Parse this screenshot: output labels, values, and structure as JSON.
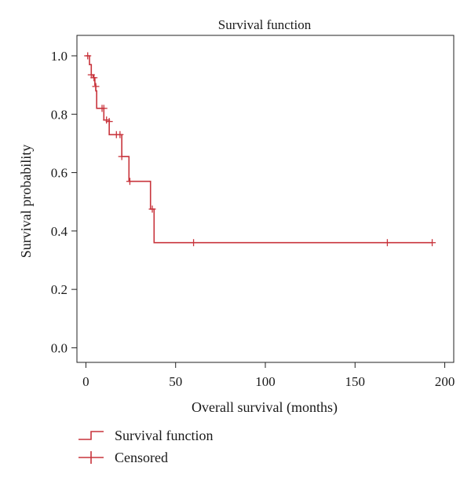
{
  "chart_data": {
    "type": "line",
    "title": "Survival function",
    "xlabel": "Overall survival (months)",
    "ylabel": "Survival probability",
    "xlim": [
      -5,
      205
    ],
    "ylim": [
      -0.05,
      1.07
    ],
    "xticks": [
      0,
      50,
      100,
      150,
      200
    ],
    "xtick_labels": [
      "0",
      "50",
      "100",
      "150",
      "200"
    ],
    "yticks": [
      0.0,
      0.2,
      0.4,
      0.6,
      0.8,
      1.0
    ],
    "ytick_labels": [
      "0.0",
      "0.2",
      "0.4",
      "0.6",
      "0.8",
      "1.0"
    ],
    "series": [
      {
        "name": "Survival function",
        "step": true,
        "color": "#c8343c",
        "x": [
          0,
          2,
          3,
          4,
          5,
          5.5,
          6,
          9,
          10,
          10.5,
          13,
          19,
          20,
          24,
          36,
          38,
          193
        ],
        "y": [
          1.0,
          0.97,
          0.935,
          0.925,
          0.9,
          0.88,
          0.82,
          0.82,
          0.78,
          0.78,
          0.73,
          0.73,
          0.655,
          0.57,
          0.475,
          0.36,
          0.36
        ]
      },
      {
        "name": "Censored",
        "color": "#c8343c",
        "x": [
          1,
          3,
          4.5,
          5.5,
          9,
          10,
          11.5,
          13,
          17,
          19,
          20,
          24.5,
          37,
          60,
          168,
          193
        ],
        "y": [
          1.0,
          0.935,
          0.925,
          0.895,
          0.82,
          0.82,
          0.78,
          0.775,
          0.73,
          0.73,
          0.655,
          0.57,
          0.475,
          0.36,
          0.36,
          0.36
        ]
      }
    ],
    "legend": {
      "position": "bottom-left",
      "entries": [
        "Survival function",
        "Censored"
      ]
    }
  }
}
